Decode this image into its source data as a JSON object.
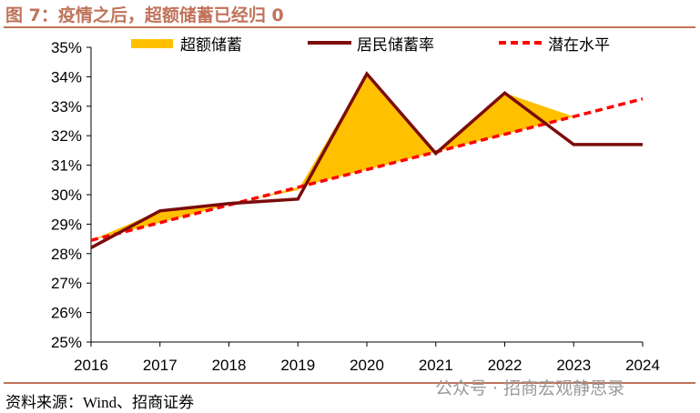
{
  "title": "图 7：疫情之后，超额储蓄已经归 0",
  "source": "资料来源：Wind、招商证券",
  "watermark": "公众号 · 招商宏观静思录",
  "chart_data": {
    "type": "line",
    "x": [
      "2016",
      "2017",
      "2018",
      "2019",
      "2020",
      "2021",
      "2022",
      "2023",
      "2024"
    ],
    "ylim": [
      25,
      35
    ],
    "yticks": [
      "25%",
      "26%",
      "27%",
      "28%",
      "29%",
      "30%",
      "31%",
      "32%",
      "33%",
      "34%",
      "35%"
    ],
    "legend_placement": "top",
    "series": [
      {
        "name": "超额储蓄",
        "type": "area",
        "color": "#ffc000",
        "upper": [
          28.45,
          29.45,
          29.7,
          30.15,
          34.1,
          31.4,
          33.45,
          32.65,
          33.25
        ]
      },
      {
        "name": "居民储蓄率",
        "type": "line",
        "color": "#7b0c0c",
        "values": [
          28.2,
          29.45,
          29.7,
          29.85,
          34.1,
          31.4,
          33.45,
          31.7,
          31.7
        ]
      },
      {
        "name": "潜在水平",
        "type": "dashed",
        "color": "#ff0000",
        "values": [
          28.45,
          29.05,
          29.65,
          30.25,
          30.85,
          31.45,
          32.05,
          32.65,
          33.25
        ]
      }
    ]
  }
}
